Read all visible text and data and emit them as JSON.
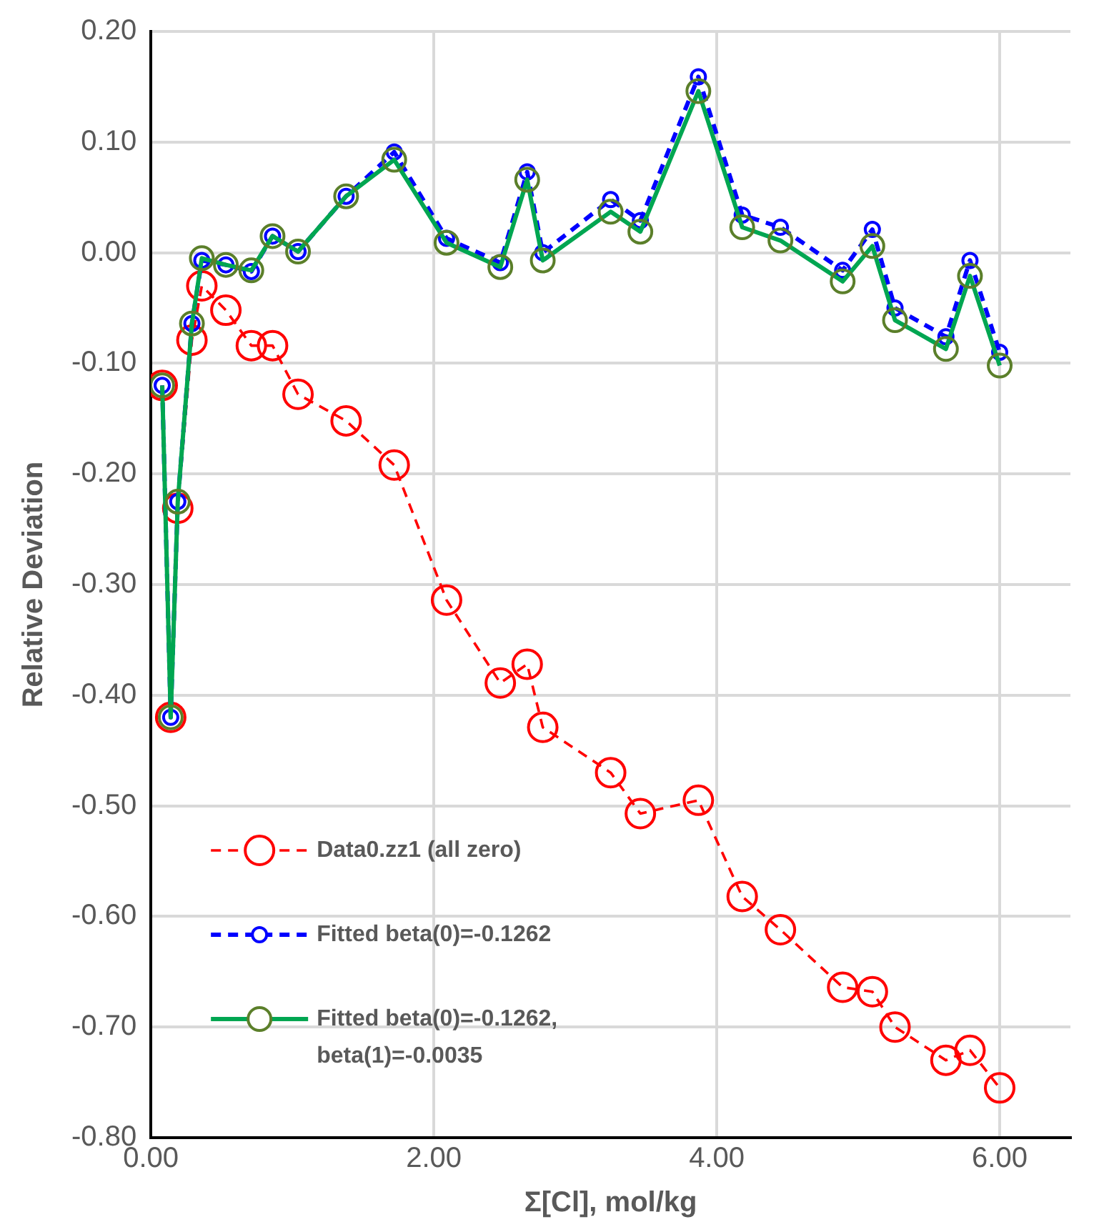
{
  "chart_data": {
    "type": "line",
    "xlabel": "Σ[Cl], mol/kg",
    "ylabel": "Relative Deviation",
    "x": [
      0.08,
      0.14,
      0.19,
      0.29,
      0.36,
      0.53,
      0.71,
      0.86,
      1.04,
      1.38,
      1.72,
      2.09,
      2.47,
      2.66,
      2.77,
      3.25,
      3.46,
      3.87,
      4.18,
      4.45,
      4.89,
      5.1,
      5.26,
      5.62,
      5.79,
      6.0
    ],
    "series": [
      {
        "name": "Data0.zz1 (all zero)",
        "color": "#ff0000",
        "line_style": "dashed",
        "marker": "circle",
        "values": [
          -0.12,
          -0.42,
          -0.231,
          -0.079,
          -0.03,
          -0.052,
          -0.084,
          -0.084,
          -0.128,
          -0.152,
          -0.192,
          -0.314,
          -0.389,
          -0.372,
          -0.429,
          -0.47,
          -0.507,
          -0.495,
          -0.582,
          -0.612,
          -0.664,
          -0.668,
          -0.7,
          -0.73,
          -0.721,
          -0.755
        ]
      },
      {
        "name": "Fitted beta(0)=-0.1262",
        "color": "#0000ff",
        "line_style": "dashed",
        "marker": "circle",
        "values": [
          -0.12,
          -0.42,
          -0.225,
          -0.064,
          -0.007,
          -0.011,
          -0.017,
          0.015,
          0.001,
          0.051,
          0.091,
          0.013,
          -0.009,
          0.073,
          0.0,
          0.048,
          0.029,
          0.159,
          0.034,
          0.023,
          -0.016,
          0.021,
          -0.05,
          -0.076,
          -0.007,
          -0.09
        ]
      },
      {
        "name": "Fitted beta(0)=-0.1262, beta(1)=-0.0035",
        "color": "#00a651",
        "line_style": "solid",
        "marker": "circle",
        "values": [
          -0.12,
          -0.42,
          -0.225,
          -0.064,
          -0.005,
          -0.011,
          -0.016,
          0.015,
          0.001,
          0.051,
          0.084,
          0.009,
          -0.013,
          0.066,
          -0.007,
          0.037,
          0.019,
          0.146,
          0.023,
          0.011,
          -0.026,
          0.006,
          -0.061,
          -0.087,
          -0.021,
          -0.102
        ]
      }
    ],
    "xlim": [
      0,
      6.5
    ],
    "xticks": [
      {
        "value": 0,
        "label": "0.00"
      },
      {
        "value": 2,
        "label": "2.00"
      },
      {
        "value": 4,
        "label": "4.00"
      },
      {
        "value": 6,
        "label": "6.00"
      }
    ],
    "ylim": [
      -0.8,
      0.2
    ],
    "yticks": [
      {
        "value": -0.8,
        "label": "-0.80"
      },
      {
        "value": -0.7,
        "label": "-0.70"
      },
      {
        "value": -0.6,
        "label": "-0.60"
      },
      {
        "value": -0.5,
        "label": "-0.50"
      },
      {
        "value": -0.4,
        "label": "-0.40"
      },
      {
        "value": -0.3,
        "label": "-0.30"
      },
      {
        "value": -0.2,
        "label": "-0.20"
      },
      {
        "value": -0.1,
        "label": "-0.10"
      },
      {
        "value": 0,
        "label": "0.00"
      },
      {
        "value": 0.1,
        "label": "0.10"
      },
      {
        "value": 0.2,
        "label": "0.20"
      }
    ],
    "grid": true,
    "legend": "bottom left"
  }
}
